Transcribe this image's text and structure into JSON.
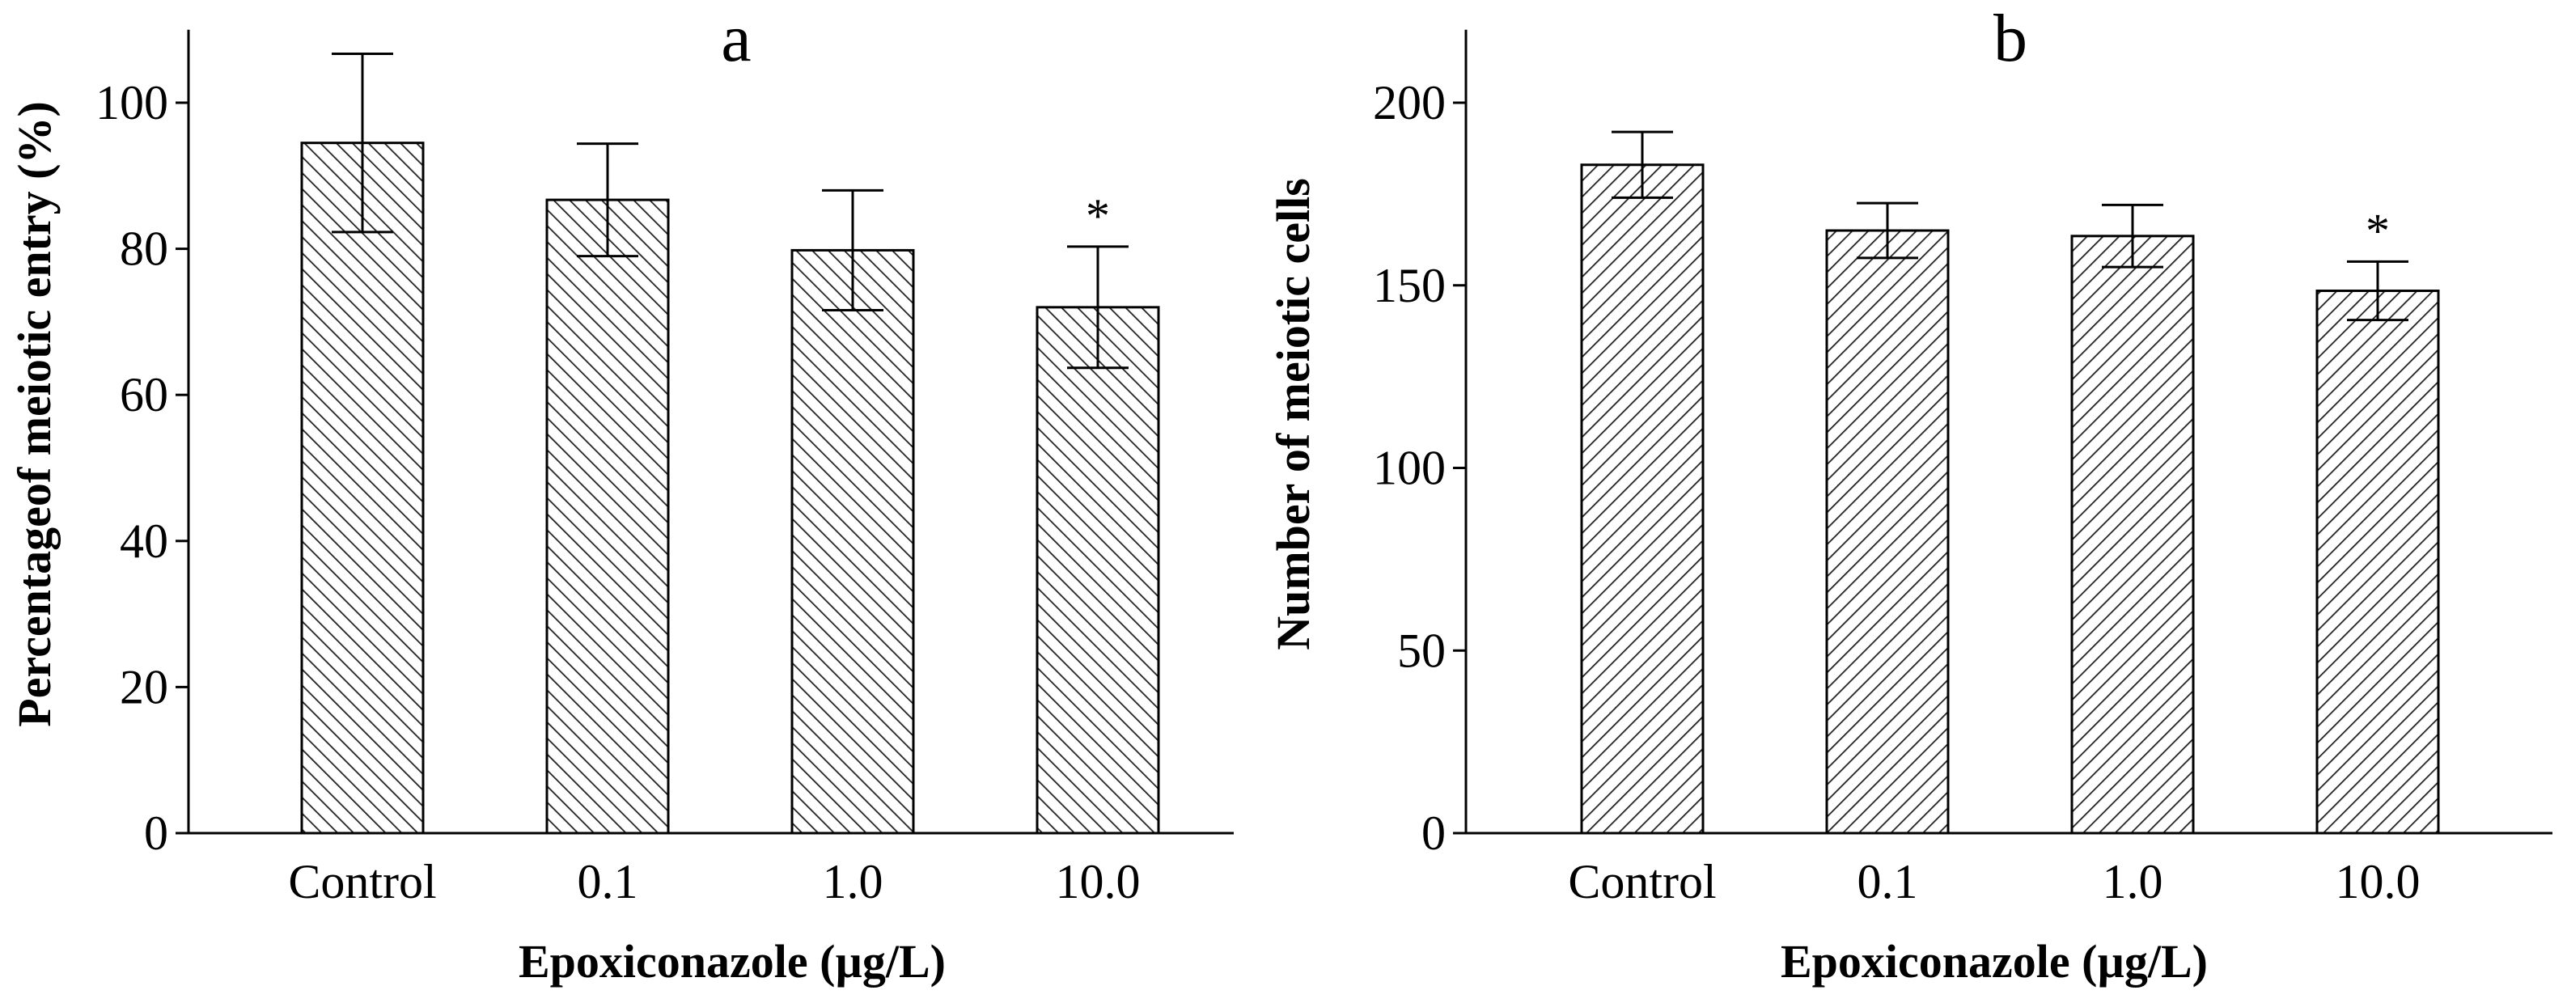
{
  "chart_data": [
    {
      "type": "bar",
      "panel": "a",
      "title": "a",
      "xlabel": "Epoxiconazole (µg/L)",
      "ylabel": "Percentageof meiotic entry (%)",
      "categories": [
        "Control",
        "0.1",
        "1.0",
        "10.0"
      ],
      "values": [
        94.5,
        86.7,
        79.8,
        72.0
      ],
      "errors": [
        12.2,
        7.7,
        8.2,
        8.3
      ],
      "significance": [
        "",
        "",
        "",
        "*"
      ],
      "ylim": [
        0,
        110
      ],
      "yticks": [
        0,
        20,
        40,
        60,
        80,
        100
      ],
      "ytick_labels": [
        "0",
        "20",
        "40",
        "60",
        "80",
        "100"
      ],
      "hatch": "backslash",
      "bar_color": "#ffffff"
    },
    {
      "type": "bar",
      "panel": "b",
      "title": "b",
      "xlabel": "Epoxiconazole (µg/L)",
      "ylabel": "Number of meiotic cells",
      "categories": [
        "Control",
        "0.1",
        "1.0",
        "10.0"
      ],
      "values": [
        183,
        165,
        163.5,
        148.5
      ],
      "errors": [
        9,
        7.5,
        8.5,
        8
      ],
      "significance": [
        "",
        "",
        "",
        "*"
      ],
      "ylim": [
        0,
        220
      ],
      "yticks": [
        0,
        50,
        100,
        150,
        200
      ],
      "ytick_labels": [
        "0",
        "50",
        "100",
        "150",
        "200"
      ],
      "hatch": "slash",
      "bar_color": "#ffffff"
    }
  ]
}
